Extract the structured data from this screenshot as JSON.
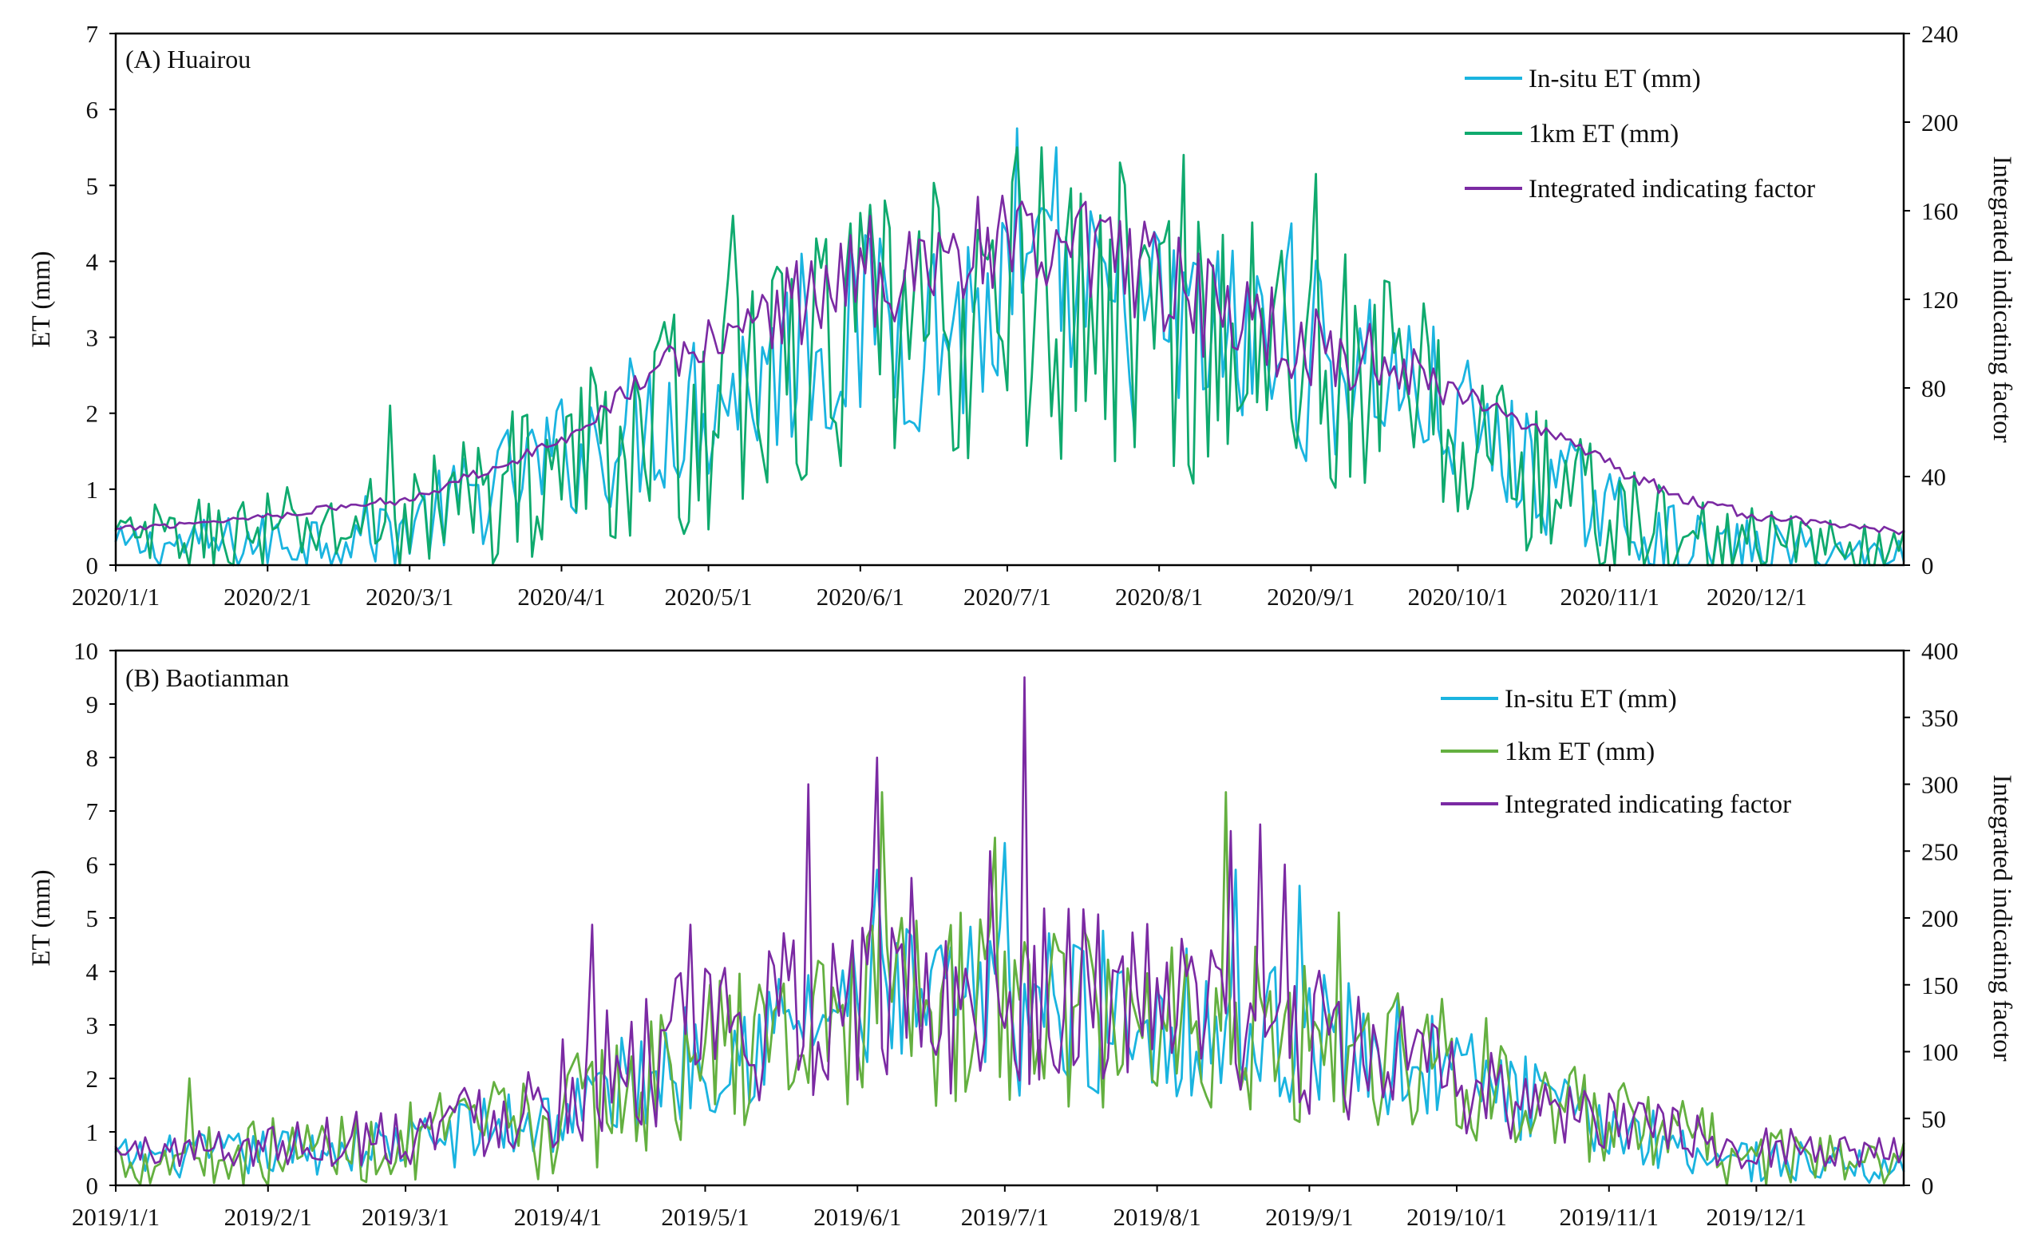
{
  "chart_data": [
    {
      "type": "line",
      "title": "(A) Huairou",
      "ylabel": "ET (mm)",
      "y2label": "Integrated indicating factor",
      "ylim": [
        0,
        7
      ],
      "yticks": [
        0,
        1,
        2,
        3,
        4,
        5,
        6,
        7
      ],
      "y2lim": [
        0,
        240
      ],
      "y2ticks": [
        0,
        40,
        80,
        120,
        160,
        200,
        240
      ],
      "x_start": "2020/1/1",
      "n_days": 366,
      "xticks": [
        {
          "day": 0,
          "label": "2020/1/1"
        },
        {
          "day": 31,
          "label": "2020/2/1"
        },
        {
          "day": 60,
          "label": "2020/3/1"
        },
        {
          "day": 91,
          "label": "2020/4/1"
        },
        {
          "day": 121,
          "label": "2020/5/1"
        },
        {
          "day": 152,
          "label": "2020/6/1"
        },
        {
          "day": 182,
          "label": "2020/7/1"
        },
        {
          "day": 213,
          "label": "2020/8/1"
        },
        {
          "day": 244,
          "label": "2020/9/1"
        },
        {
          "day": 274,
          "label": "2020/10/1"
        },
        {
          "day": 305,
          "label": "2020/11/1"
        },
        {
          "day": 335,
          "label": "2020/12/1"
        }
      ],
      "legend_position": "top-right",
      "series": [
        {
          "name": "In-situ ET (mm)",
          "axis": "left",
          "color": "#1ab4e0",
          "envelope": {
            "days": [
              0,
              30,
              60,
              90,
              120,
              150,
              180,
              200,
              230,
              260,
              290,
              320,
              365
            ],
            "values": [
              0.25,
              0.3,
              0.5,
              1.4,
              2.2,
              3.0,
              3.3,
              3.3,
              2.9,
              2.5,
              1.2,
              0.2,
              0.15
            ]
          },
          "amplitude": {
            "days": [
              0,
              60,
              120,
              180,
              240,
              300,
              365
            ],
            "values": [
              0.2,
              0.4,
              0.9,
              1.2,
              1.1,
              0.5,
              0.15
            ]
          },
          "spikes": [
            {
              "day": 184,
              "value": 5.75
            },
            {
              "day": 192,
              "value": 5.5
            },
            {
              "day": 240,
              "value": 4.5
            },
            {
              "day": 156,
              "value": 4.3
            },
            {
              "day": 140,
              "value": 4.1
            }
          ]
        },
        {
          "name": "1km ET (mm)",
          "axis": "left",
          "color": "#0faa6e",
          "envelope": {
            "days": [
              0,
              30,
              60,
              90,
              120,
              150,
              180,
              200,
              230,
              260,
              290,
              320,
              365
            ],
            "values": [
              0.35,
              0.4,
              0.6,
              1.3,
              2.0,
              3.0,
              3.2,
              3.3,
              2.9,
              2.4,
              1.1,
              0.25,
              0.2
            ]
          },
          "amplitude": {
            "days": [
              0,
              60,
              120,
              180,
              240,
              300,
              365
            ],
            "values": [
              0.3,
              0.6,
              1.2,
              1.6,
              1.5,
              0.7,
              0.2
            ]
          },
          "spikes": [
            {
              "day": 184,
              "value": 5.5
            },
            {
              "day": 189,
              "value": 5.5
            },
            {
              "day": 205,
              "value": 5.3
            },
            {
              "day": 218,
              "value": 5.4
            },
            {
              "day": 245,
              "value": 5.15
            },
            {
              "day": 157,
              "value": 4.8
            },
            {
              "day": 126,
              "value": 4.6
            },
            {
              "day": 56,
              "value": 2.1
            }
          ]
        },
        {
          "name": "Integrated indicating factor",
          "axis": "right",
          "color": "#7b2aa3",
          "envelope": {
            "days": [
              0,
              30,
              60,
              90,
              105,
              120,
              135,
              150,
              165,
              180,
              200,
              215,
              230,
              245,
              260,
              275,
              290,
              305,
              320,
              335,
              365
            ],
            "values": [
              16,
              22,
              30,
              55,
              80,
              100,
              115,
              130,
              140,
              140,
              135,
              125,
              110,
              100,
              90,
              78,
              62,
              45,
              30,
              22,
              15
            ]
          },
          "amplitude": {
            "days": [
              0,
              90,
              120,
              150,
              200,
              250,
              280,
              365
            ],
            "values": [
              1,
              2,
              8,
              20,
              22,
              15,
              3,
              1
            ]
          },
          "spikes": [
            {
              "day": 186,
              "value": 158
            },
            {
              "day": 202,
              "value": 155
            },
            {
              "day": 168,
              "value": 150
            }
          ]
        }
      ]
    },
    {
      "type": "line",
      "title": "(B) Baotianman",
      "ylabel": "ET (mm)",
      "y2label": "Integrated indicating factor",
      "ylim": [
        0,
        10
      ],
      "yticks": [
        0,
        1,
        2,
        3,
        4,
        5,
        6,
        7,
        8,
        9,
        10
      ],
      "y2lim": [
        0,
        400
      ],
      "y2ticks": [
        0,
        50,
        100,
        150,
        200,
        250,
        300,
        350,
        400
      ],
      "x_start": "2019/1/1",
      "n_days": 365,
      "xticks": [
        {
          "day": 0,
          "label": "2019/1/1"
        },
        {
          "day": 31,
          "label": "2019/2/1"
        },
        {
          "day": 59,
          "label": "2019/3/1"
        },
        {
          "day": 90,
          "label": "2019/4/1"
        },
        {
          "day": 120,
          "label": "2019/5/1"
        },
        {
          "day": 151,
          "label": "2019/6/1"
        },
        {
          "day": 181,
          "label": "2019/7/1"
        },
        {
          "day": 212,
          "label": "2019/8/1"
        },
        {
          "day": 243,
          "label": "2019/9/1"
        },
        {
          "day": 273,
          "label": "2019/10/1"
        },
        {
          "day": 304,
          "label": "2019/11/1"
        },
        {
          "day": 334,
          "label": "2019/12/1"
        }
      ],
      "legend_position": "top-right",
      "series": [
        {
          "name": "In-situ ET (mm)",
          "axis": "left",
          "color": "#1ab4e0",
          "envelope": {
            "days": [
              0,
              30,
              60,
              90,
              120,
              150,
              180,
              210,
              240,
              270,
              300,
              330,
              364
            ],
            "values": [
              0.5,
              0.6,
              0.8,
              1.3,
              2.5,
              3.3,
              3.3,
              3.2,
              2.8,
              2.2,
              1.2,
              0.5,
              0.3
            ]
          },
          "amplitude": {
            "days": [
              0,
              60,
              120,
              180,
              240,
              300,
              364
            ],
            "values": [
              0.3,
              0.4,
              0.9,
              1.3,
              1.1,
              0.5,
              0.2
            ]
          },
          "spikes": [
            {
              "day": 181,
              "value": 6.4
            },
            {
              "day": 155,
              "value": 5.9
            },
            {
              "day": 228,
              "value": 5.9
            },
            {
              "day": 241,
              "value": 5.6
            }
          ]
        },
        {
          "name": "1km ET (mm)",
          "axis": "left",
          "color": "#64b040",
          "envelope": {
            "days": [
              0,
              30,
              60,
              90,
              120,
              150,
              180,
              210,
              240,
              270,
              300,
              330,
              364
            ],
            "values": [
              0.5,
              0.6,
              0.8,
              1.2,
              2.4,
              3.2,
              3.3,
              3.2,
              2.8,
              2.3,
              1.2,
              0.6,
              0.4
            ]
          },
          "amplitude": {
            "days": [
              0,
              60,
              120,
              180,
              240,
              300,
              364
            ],
            "values": [
              0.4,
              0.6,
              1.1,
              1.5,
              1.4,
              0.7,
              0.3
            ]
          },
          "spikes": [
            {
              "day": 156,
              "value": 7.35
            },
            {
              "day": 226,
              "value": 7.35
            },
            {
              "day": 179,
              "value": 6.5
            },
            {
              "day": 249,
              "value": 5.1
            },
            {
              "day": 15,
              "value": 2.0
            }
          ]
        },
        {
          "name": "Integrated indicating factor",
          "axis": "right",
          "color": "#7b2aa3",
          "envelope": {
            "days": [
              0,
              30,
              60,
              90,
              120,
              150,
              180,
              210,
              240,
              270,
              300,
              330,
              364
            ],
            "values": [
              25,
              30,
              40,
              70,
              110,
              140,
              145,
              135,
              110,
              80,
              50,
              30,
              25
            ]
          },
          "amplitude": {
            "days": [
              0,
              60,
              120,
              180,
              240,
              300,
              364
            ],
            "values": [
              8,
              20,
              45,
              60,
              45,
              18,
              8
            ]
          },
          "spikes": [
            {
              "day": 185,
              "value": 380
            },
            {
              "day": 155,
              "value": 320
            },
            {
              "day": 141,
              "value": 300
            },
            {
              "day": 227,
              "value": 265
            },
            {
              "day": 233,
              "value": 270
            },
            {
              "day": 178,
              "value": 250
            },
            {
              "day": 238,
              "value": 240
            },
            {
              "day": 162,
              "value": 230
            },
            {
              "day": 117,
              "value": 195
            },
            {
              "day": 97,
              "value": 195
            }
          ]
        }
      ]
    }
  ]
}
